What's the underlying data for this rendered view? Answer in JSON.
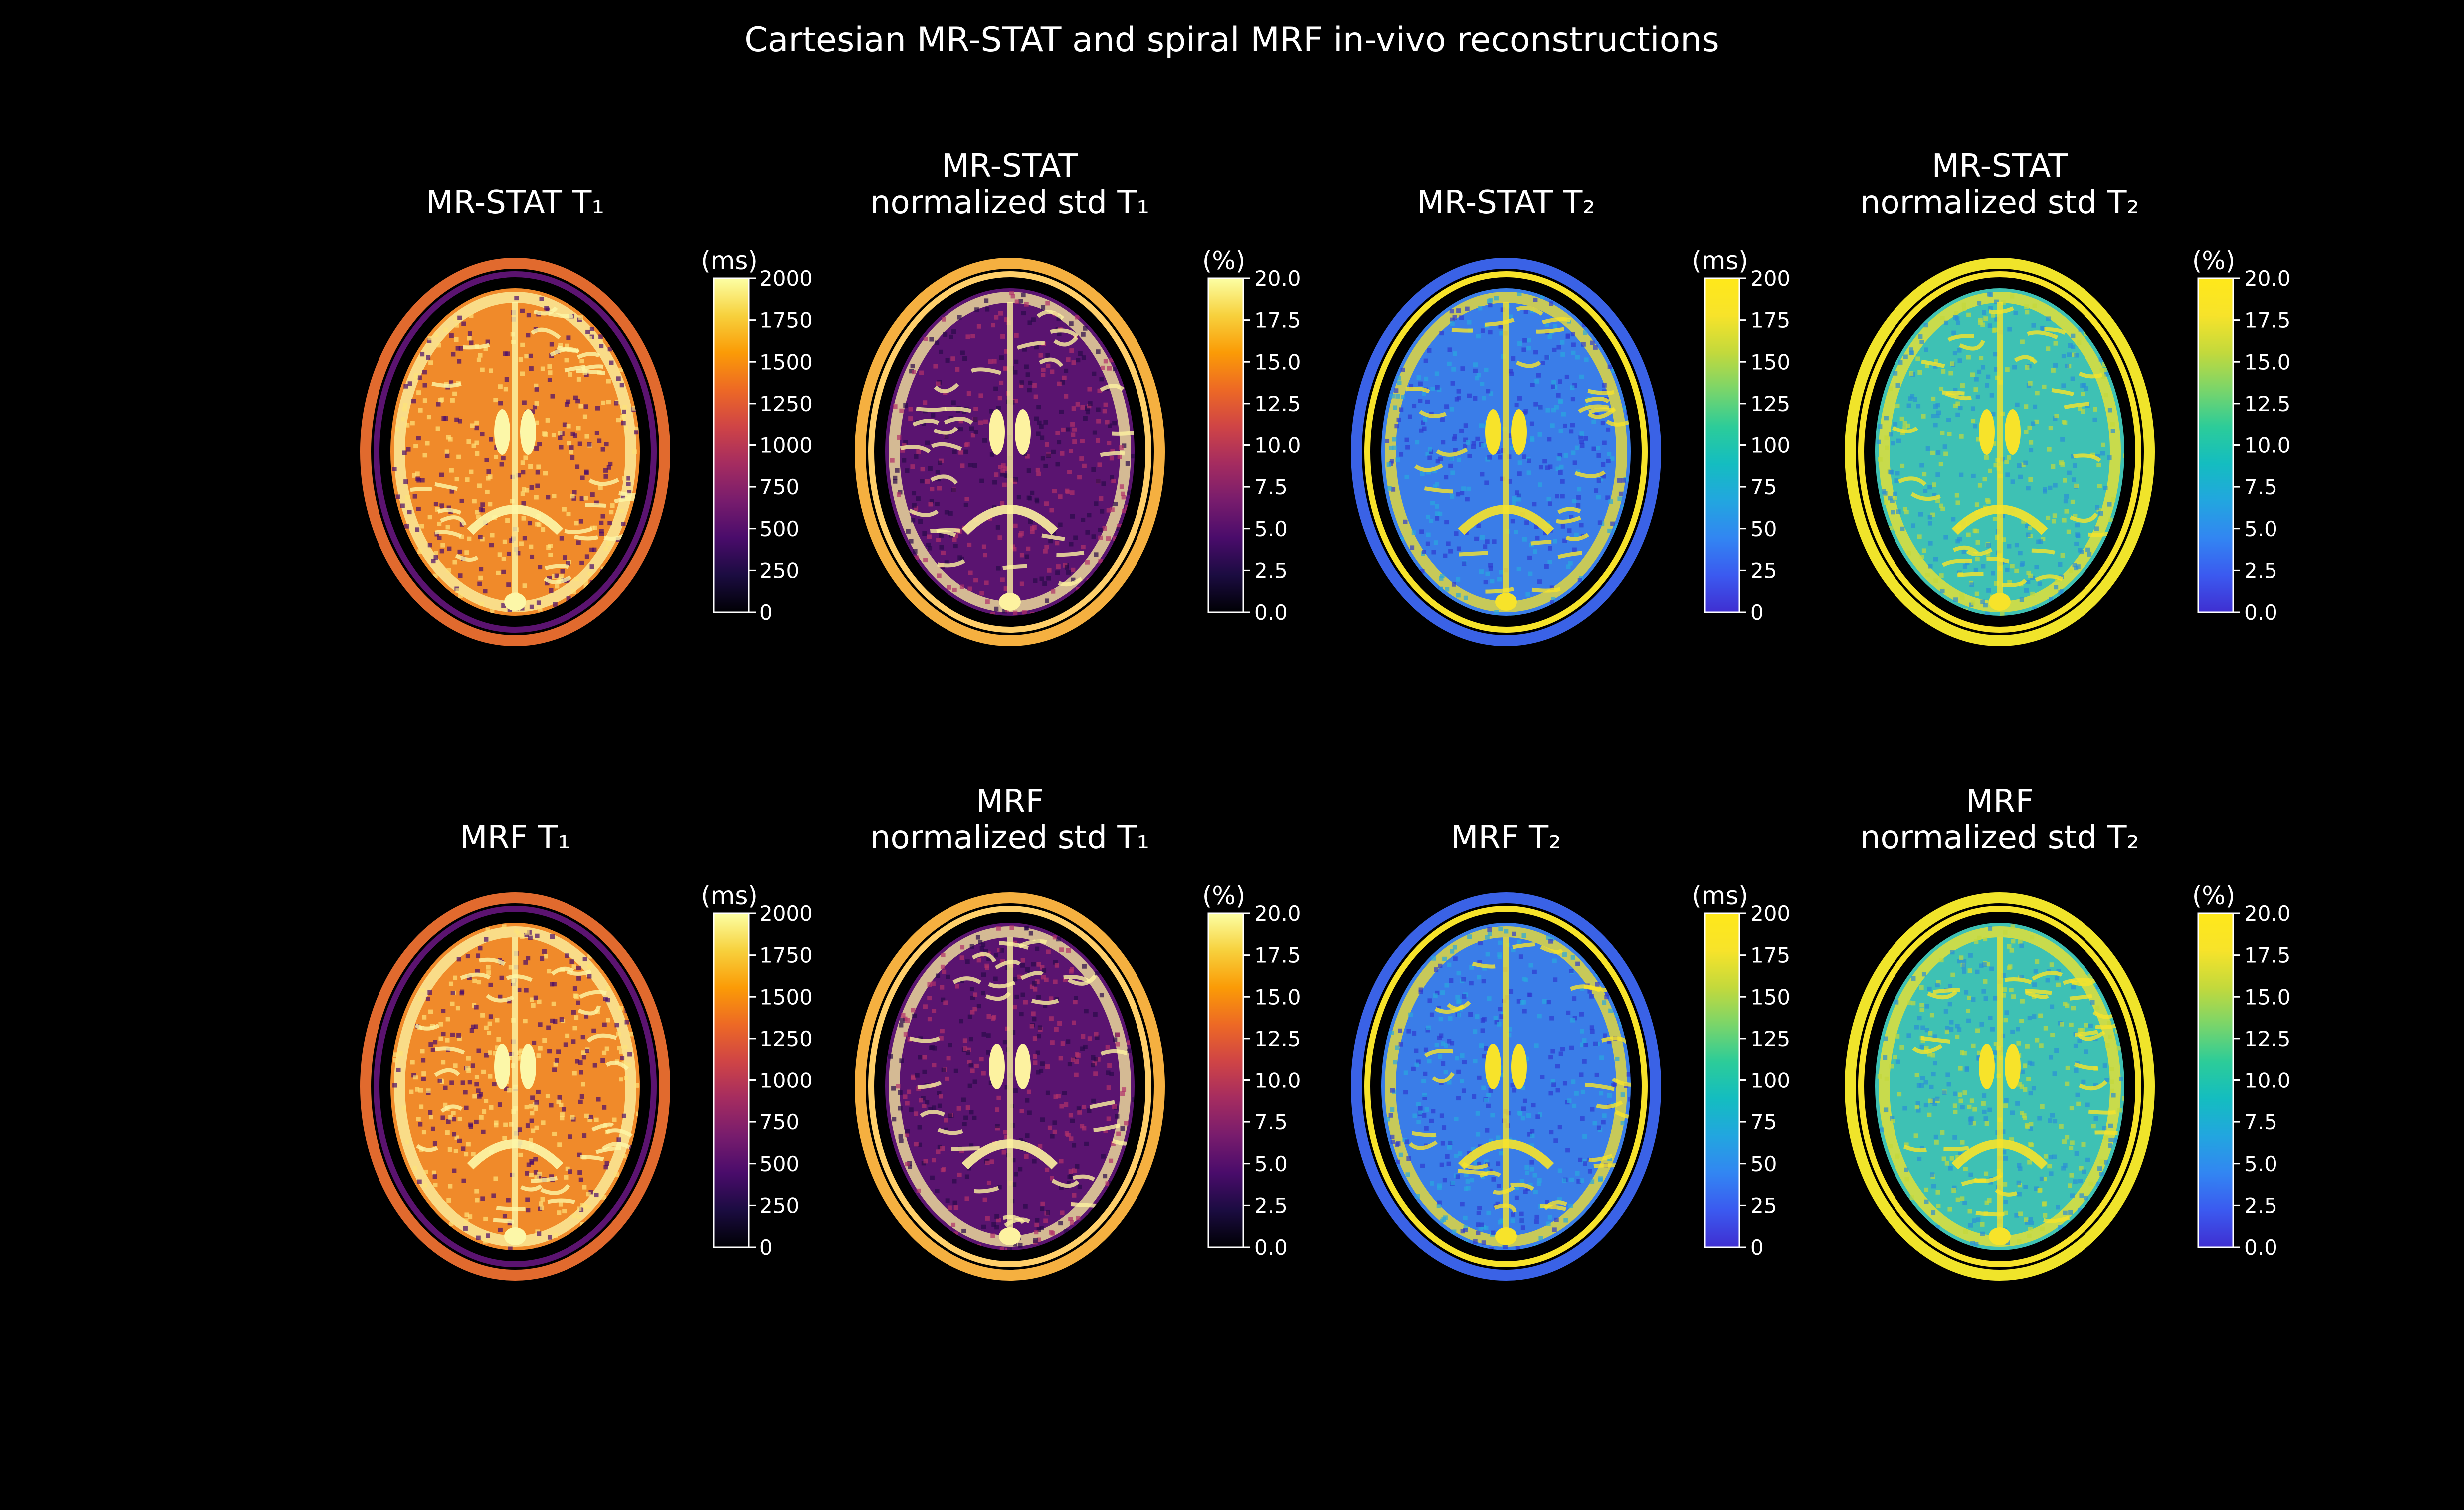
{
  "figure": {
    "title": "Cartesian MR-STAT and spiral MRF in-vivo reconstructions"
  },
  "colormaps": {
    "inferno": [
      "#000004",
      "#1b0c41",
      "#4a0c6b",
      "#781c6d",
      "#a52c60",
      "#cf4446",
      "#ed6925",
      "#fb9b06",
      "#f7d13d",
      "#fcffa4"
    ],
    "plasma": [
      "#3f2fd1",
      "#3b5af0",
      "#3286f2",
      "#22a6df",
      "#14bdc0",
      "#2ccc99",
      "#7ad56a",
      "#c3d93c",
      "#f7e32a",
      "#ffe81a"
    ]
  },
  "panels": [
    {
      "id": "mrstat-t1",
      "title_lines": [
        "MR-STAT T₁"
      ],
      "unit": "(ms)",
      "cmap": "inferno",
      "ticks": [
        "0",
        "250",
        "500",
        "750",
        "1000",
        "1250",
        "1500",
        "1750",
        "2000"
      ],
      "variant": 0
    },
    {
      "id": "mrstat-std-t1",
      "title_lines": [
        "MR-STAT",
        "normalized std T₁"
      ],
      "unit": "(%)",
      "cmap": "inferno",
      "ticks": [
        "0.0",
        "2.5",
        "5.0",
        "7.5",
        "10.0",
        "12.5",
        "15.0",
        "17.5",
        "20.0"
      ],
      "variant": 1
    },
    {
      "id": "mrstat-t2",
      "title_lines": [
        "MR-STAT T₂"
      ],
      "unit": "(ms)",
      "cmap": "plasma",
      "ticks": [
        "0",
        "25",
        "50",
        "75",
        "100",
        "125",
        "150",
        "175",
        "200"
      ],
      "variant": 2
    },
    {
      "id": "mrstat-std-t2",
      "title_lines": [
        "MR-STAT",
        "normalized std T₂"
      ],
      "unit": "(%)",
      "cmap": "plasma",
      "ticks": [
        "0.0",
        "2.5",
        "5.0",
        "7.5",
        "10.0",
        "12.5",
        "15.0",
        "17.5",
        "20.0"
      ],
      "variant": 3
    },
    {
      "id": "mrf-t1",
      "title_lines": [
        "MRF T₁"
      ],
      "unit": "(ms)",
      "cmap": "inferno",
      "ticks": [
        "0",
        "250",
        "500",
        "750",
        "1000",
        "1250",
        "1500",
        "1750",
        "2000"
      ],
      "variant": 0
    },
    {
      "id": "mrf-std-t1",
      "title_lines": [
        "MRF",
        "normalized std T₁"
      ],
      "unit": "(%)",
      "cmap": "inferno",
      "ticks": [
        "0.0",
        "2.5",
        "5.0",
        "7.5",
        "10.0",
        "12.5",
        "15.0",
        "17.5",
        "20.0"
      ],
      "variant": 1
    },
    {
      "id": "mrf-t2",
      "title_lines": [
        "MRF T₂"
      ],
      "unit": "(ms)",
      "cmap": "plasma",
      "ticks": [
        "0",
        "25",
        "50",
        "75",
        "100",
        "125",
        "150",
        "175",
        "200"
      ],
      "variant": 2
    },
    {
      "id": "mrf-std-t2",
      "title_lines": [
        "MRF",
        "normalized std T₂"
      ],
      "unit": "(%)",
      "cmap": "plasma",
      "ticks": [
        "0.0",
        "2.5",
        "5.0",
        "7.5",
        "10.0",
        "12.5",
        "15.0",
        "17.5",
        "20.0"
      ],
      "variant": 3
    }
  ]
}
